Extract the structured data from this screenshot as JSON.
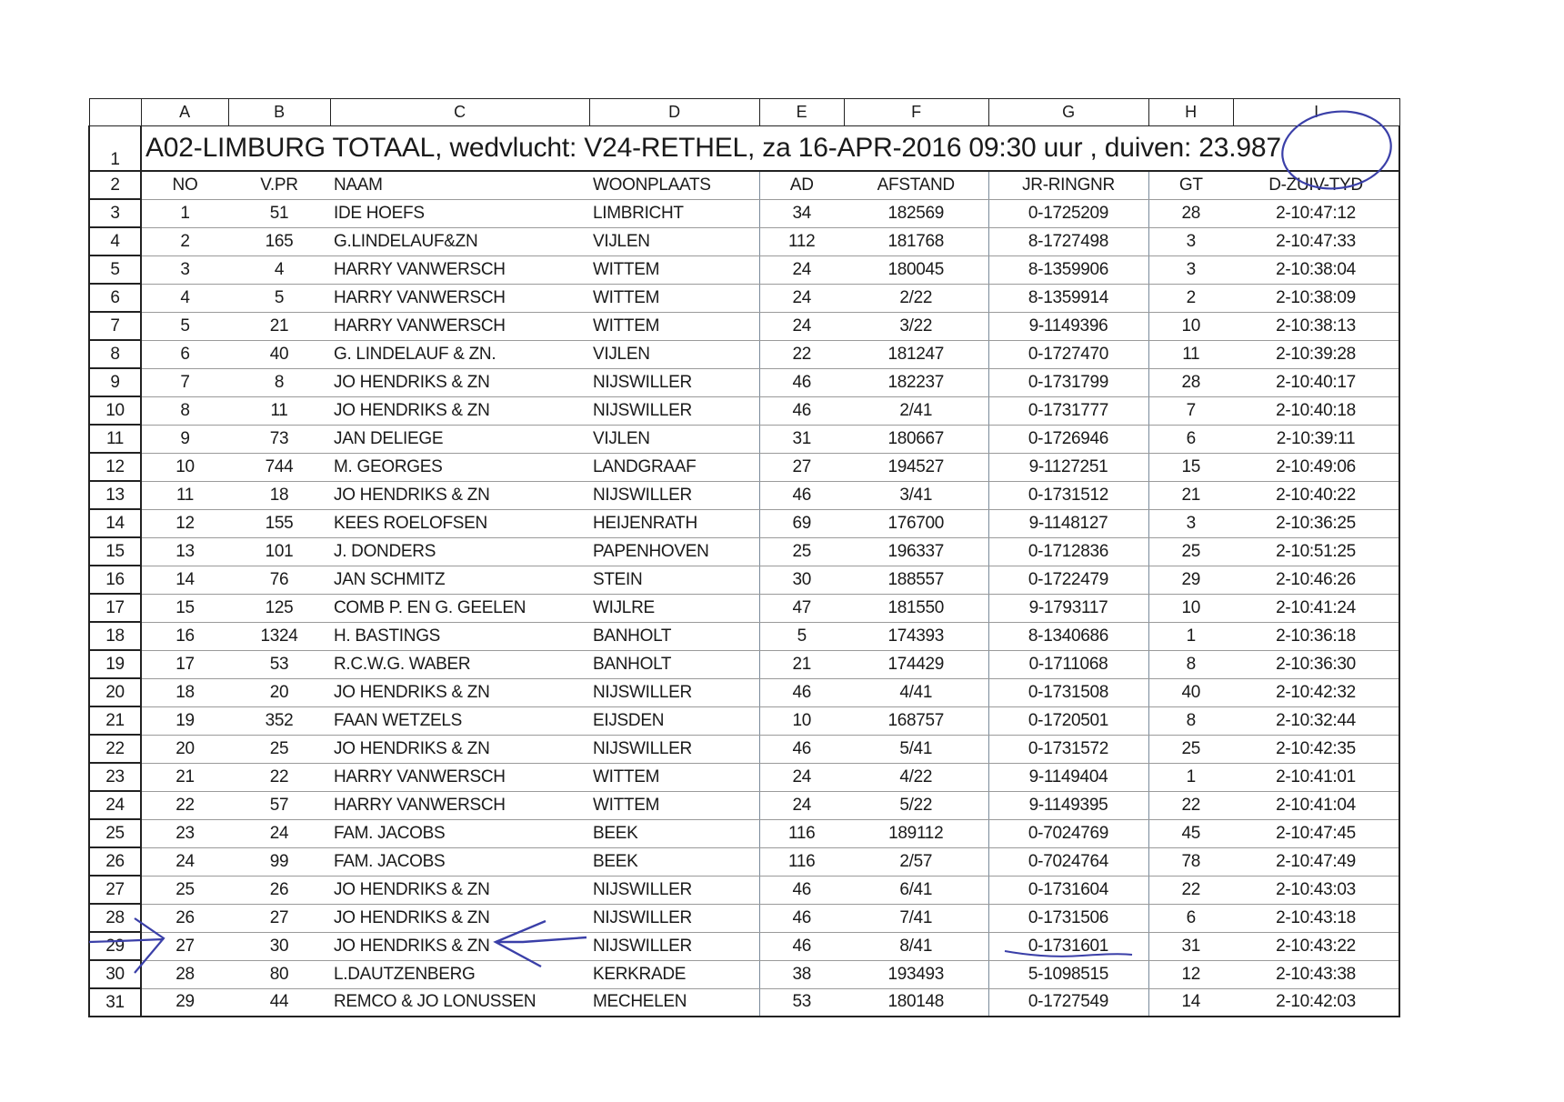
{
  "column_letters": [
    "A",
    "B",
    "C",
    "D",
    "E",
    "F",
    "G",
    "H",
    "I"
  ],
  "title": "A02-LIMBURG TOTAAL, wedvlucht: V24-RETHEL, za 16-APR-2016 09:30 uur , duiven: 23.987",
  "headers": [
    "NO",
    "V.PR",
    "NAAM",
    "WOONPLAATS",
    "AD",
    "AFSTAND",
    "JR-RINGNR",
    "GT",
    "D-ZUIV-TYD"
  ],
  "rows": [
    [
      "1",
      "51",
      "IDE HOEFS",
      "LIMBRICHT",
      "34",
      "182569",
      "0-1725209",
      "28",
      "2-10:47:12"
    ],
    [
      "2",
      "165",
      "G.LINDELAUF&ZN",
      "VIJLEN",
      "112",
      "181768",
      "8-1727498",
      "3",
      "2-10:47:33"
    ],
    [
      "3",
      "4",
      "HARRY VANWERSCH",
      "WITTEM",
      "24",
      "180045",
      "8-1359906",
      "3",
      "2-10:38:04"
    ],
    [
      "4",
      "5",
      "HARRY VANWERSCH",
      "WITTEM",
      "24",
      "2/22",
      "8-1359914",
      "2",
      "2-10:38:09"
    ],
    [
      "5",
      "21",
      "HARRY VANWERSCH",
      "WITTEM",
      "24",
      "3/22",
      "9-1149396",
      "10",
      "2-10:38:13"
    ],
    [
      "6",
      "40",
      "G. LINDELAUF & ZN.",
      "VIJLEN",
      "22",
      "181247",
      "0-1727470",
      "11",
      "2-10:39:28"
    ],
    [
      "7",
      "8",
      "JO HENDRIKS & ZN",
      "NIJSWILLER",
      "46",
      "182237",
      "0-1731799",
      "28",
      "2-10:40:17"
    ],
    [
      "8",
      "11",
      "JO HENDRIKS & ZN",
      "NIJSWILLER",
      "46",
      "2/41",
      "0-1731777",
      "7",
      "2-10:40:18"
    ],
    [
      "9",
      "73",
      "JAN DELIEGE",
      "VIJLEN",
      "31",
      "180667",
      "0-1726946",
      "6",
      "2-10:39:11"
    ],
    [
      "10",
      "744",
      "M. GEORGES",
      "LANDGRAAF",
      "27",
      "194527",
      "9-1127251",
      "15",
      "2-10:49:06"
    ],
    [
      "11",
      "18",
      "JO HENDRIKS & ZN",
      "NIJSWILLER",
      "46",
      "3/41",
      "0-1731512",
      "21",
      "2-10:40:22"
    ],
    [
      "12",
      "155",
      "KEES ROELOFSEN",
      "HEIJENRATH",
      "69",
      "176700",
      "9-1148127",
      "3",
      "2-10:36:25"
    ],
    [
      "13",
      "101",
      "J. DONDERS",
      "PAPENHOVEN",
      "25",
      "196337",
      "0-1712836",
      "25",
      "2-10:51:25"
    ],
    [
      "14",
      "76",
      "JAN SCHMITZ",
      "STEIN",
      "30",
      "188557",
      "0-1722479",
      "29",
      "2-10:46:26"
    ],
    [
      "15",
      "125",
      "COMB P. EN G. GEELEN",
      "WIJLRE",
      "47",
      "181550",
      "9-1793117",
      "10",
      "2-10:41:24"
    ],
    [
      "16",
      "1324",
      "H. BASTINGS",
      "BANHOLT",
      "5",
      "174393",
      "8-1340686",
      "1",
      "2-10:36:18"
    ],
    [
      "17",
      "53",
      "R.C.W.G. WABER",
      "BANHOLT",
      "21",
      "174429",
      "0-1711068",
      "8",
      "2-10:36:30"
    ],
    [
      "18",
      "20",
      "JO HENDRIKS & ZN",
      "NIJSWILLER",
      "46",
      "4/41",
      "0-1731508",
      "40",
      "2-10:42:32"
    ],
    [
      "19",
      "352",
      "FAAN WETZELS",
      "EIJSDEN",
      "10",
      "168757",
      "0-1720501",
      "8",
      "2-10:32:44"
    ],
    [
      "20",
      "25",
      "JO HENDRIKS & ZN",
      "NIJSWILLER",
      "46",
      "5/41",
      "0-1731572",
      "25",
      "2-10:42:35"
    ],
    [
      "21",
      "22",
      "HARRY VANWERSCH",
      "WITTEM",
      "24",
      "4/22",
      "9-1149404",
      "1",
      "2-10:41:01"
    ],
    [
      "22",
      "57",
      "HARRY VANWERSCH",
      "WITTEM",
      "24",
      "5/22",
      "9-1149395",
      "22",
      "2-10:41:04"
    ],
    [
      "23",
      "24",
      "FAM. JACOBS",
      "BEEK",
      "116",
      "189112",
      "0-7024769",
      "45",
      "2-10:47:45"
    ],
    [
      "24",
      "99",
      "FAM. JACOBS",
      "BEEK",
      "116",
      "2/57",
      "0-7024764",
      "78",
      "2-10:47:49"
    ],
    [
      "25",
      "26",
      "JO HENDRIKS & ZN",
      "NIJSWILLER",
      "46",
      "6/41",
      "0-1731604",
      "22",
      "2-10:43:03"
    ],
    [
      "26",
      "27",
      "JO HENDRIKS & ZN",
      "NIJSWILLER",
      "46",
      "7/41",
      "0-1731506",
      "6",
      "2-10:43:18"
    ],
    [
      "27",
      "30",
      "JO HENDRIKS & ZN",
      "NIJSWILLER",
      "46",
      "8/41",
      "0-1731601",
      "31",
      "2-10:43:22"
    ],
    [
      "28",
      "80",
      "L.DAUTZENBERG",
      "KERKRADE",
      "38",
      "193493",
      "5-1098515",
      "12",
      "2-10:43:38"
    ],
    [
      "29",
      "44",
      "REMCO & JO LONUSSEN",
      "MECHELEN",
      "53",
      "180148",
      "0-1727549",
      "14",
      "2-10:42:03"
    ]
  ],
  "annotation_color": "#3a3fa8"
}
